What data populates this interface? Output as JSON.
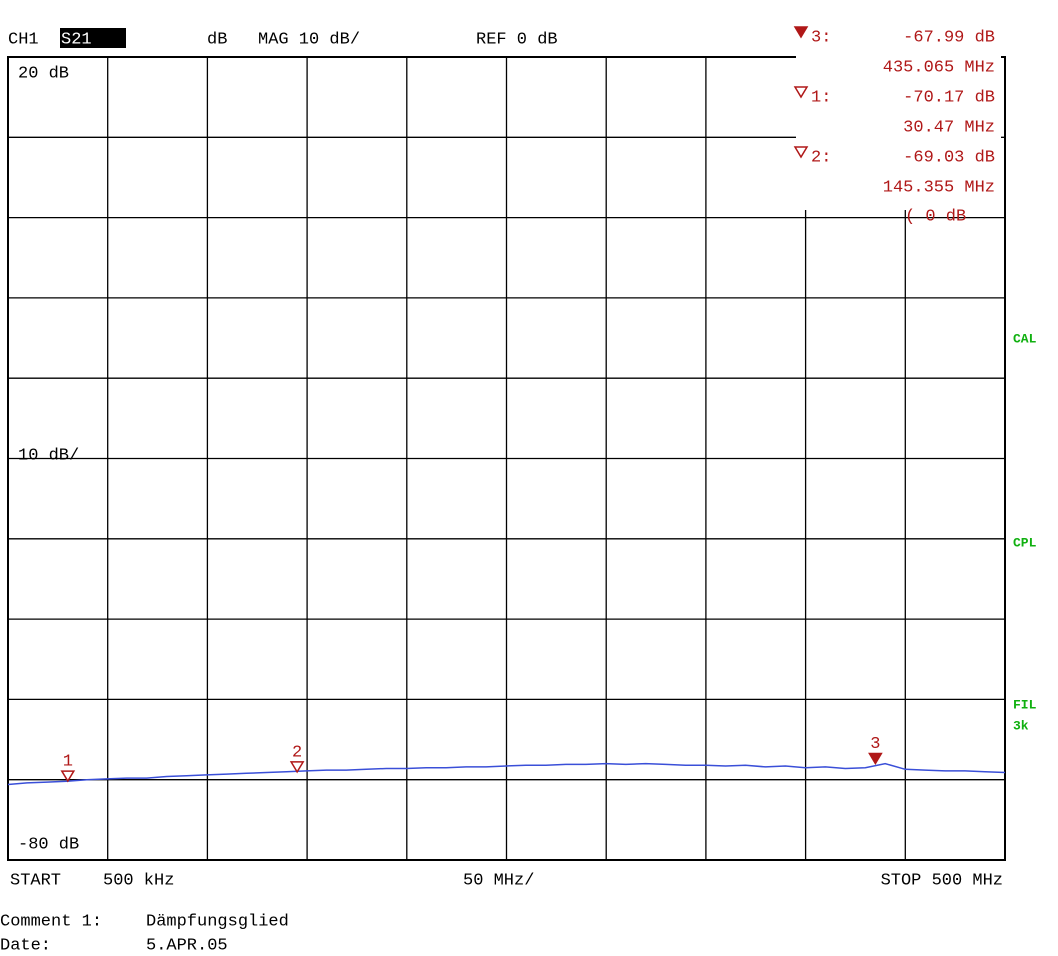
{
  "chart_data": {
    "type": "line",
    "channel": "CH1",
    "parameter": "S21",
    "format": "dB",
    "scale": "MAG 10 dB/",
    "ref": {
      "value": 0,
      "label": "REF 0 dB"
    },
    "ref_note": "( 0 dB",
    "xlim": [
      0.5,
      500
    ],
    "ylim": [
      -80,
      20
    ],
    "yticks": [
      {
        "value": 20,
        "label": "20 dB"
      },
      {
        "value": -80,
        "label": "-80 dB"
      }
    ],
    "y_scale_label": "10 dB/",
    "ygrid": [
      -70,
      -60,
      -50,
      -40,
      -30,
      -20,
      -10,
      10
    ],
    "xgrid": [
      50.45,
      100.4,
      150.35,
      200.3,
      250.25,
      300.2,
      350.15,
      400.1,
      450.05
    ],
    "x_start_label": "START",
    "x_start": "500 kHz",
    "x_scale_label": "50 MHz/",
    "x_stop_label": "STOP 500 MHz",
    "series": [
      {
        "name": "S21",
        "color": "#3a4fd8",
        "x": [
          0.5,
          10,
          20,
          30,
          40,
          50,
          60,
          70,
          80,
          90,
          100,
          110,
          120,
          130,
          140,
          150,
          160,
          170,
          180,
          190,
          200,
          210,
          220,
          230,
          240,
          250,
          260,
          270,
          280,
          290,
          300,
          310,
          320,
          330,
          340,
          350,
          360,
          370,
          380,
          390,
          400,
          410,
          420,
          430,
          440,
          450,
          460,
          470,
          480,
          490,
          500
        ],
        "values": [
          -70.6,
          -70.4,
          -70.3,
          -70.2,
          -70.0,
          -69.9,
          -69.8,
          -69.8,
          -69.6,
          -69.5,
          -69.4,
          -69.3,
          -69.2,
          -69.1,
          -69.0,
          -68.9,
          -68.8,
          -68.8,
          -68.7,
          -68.6,
          -68.6,
          -68.5,
          -68.5,
          -68.4,
          -68.4,
          -68.3,
          -68.2,
          -68.2,
          -68.1,
          -68.1,
          -68.0,
          -68.1,
          -68.0,
          -68.1,
          -68.2,
          -68.2,
          -68.3,
          -68.2,
          -68.4,
          -68.3,
          -68.5,
          -68.4,
          -68.6,
          -68.5,
          -68.0,
          -68.7,
          -68.8,
          -68.9,
          -68.9,
          -69.0,
          -69.1
        ]
      }
    ],
    "markers": [
      {
        "name": "3",
        "readout": "3:",
        "active": true,
        "value": -67.99,
        "value_label": "-67.99 dB",
        "x": 435.065,
        "x_label": "435.065 MHz"
      },
      {
        "name": "1",
        "readout": "1:",
        "active": false,
        "value": -70.17,
        "value_label": "-70.17 dB",
        "x": 30.47,
        "x_label": "30.47 MHz"
      },
      {
        "name": "2",
        "readout": "2:",
        "active": false,
        "value": -69.03,
        "value_label": "-69.03 dB",
        "x": 145.355,
        "x_label": "145.355 MHz"
      }
    ],
    "marker_color": "#b01818",
    "side_labels": [
      "CAL",
      "CPL",
      "FIL",
      "3k"
    ],
    "side_color": "#10b010"
  },
  "footer": {
    "comment_label": "Comment 1:",
    "comment": "Dämpfungsglied",
    "date_label": "Date:",
    "date": "5.APR.05"
  }
}
